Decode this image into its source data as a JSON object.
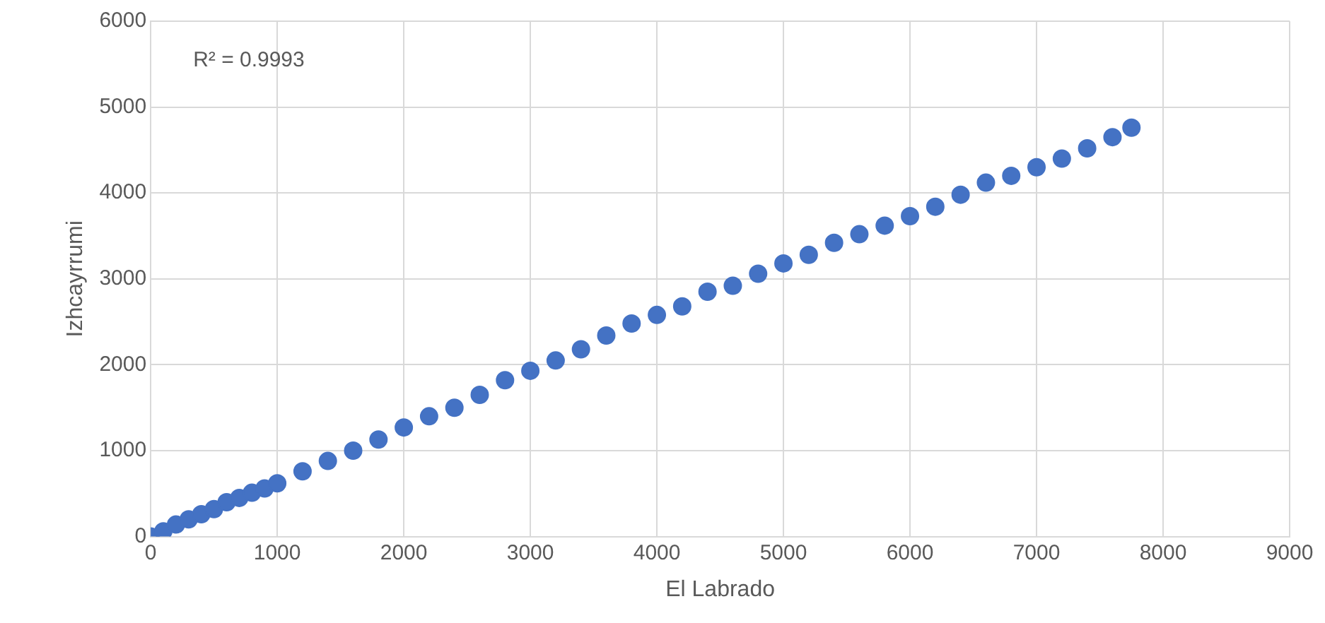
{
  "chart_data": {
    "type": "scatter",
    "xlabel": "El Labrado",
    "ylabel": "Izhcayrrumi",
    "annotations": [
      "R² = 0.9993"
    ],
    "series": [
      {
        "color": "#4472c4",
        "x": [
          0,
          100,
          200,
          300,
          400,
          500,
          600,
          700,
          800,
          900,
          1000,
          1200,
          1400,
          1600,
          1800,
          2000,
          2200,
          2400,
          2600,
          2800,
          3000,
          3200,
          3400,
          3600,
          3800,
          4000,
          4200,
          4400,
          4600,
          4800,
          5000,
          5200,
          5400,
          5600,
          5800,
          6000,
          6200,
          6400,
          6600,
          6800,
          7000,
          7200,
          7400,
          7600,
          7750
        ],
        "values": [
          0,
          60,
          140,
          200,
          260,
          320,
          400,
          450,
          510,
          560,
          620,
          760,
          880,
          1000,
          1130,
          1270,
          1400,
          1500,
          1650,
          1820,
          1930,
          2050,
          2180,
          2340,
          2480,
          2580,
          2680,
          2850,
          2920,
          3060,
          3180,
          3280,
          3420,
          3520,
          3620,
          3730,
          3840,
          3980,
          4120,
          4200,
          4300,
          4400,
          4520,
          4650,
          4760
        ]
      }
    ],
    "xlim": [
      0,
      9000
    ],
    "xticks": [
      0,
      1000,
      2000,
      3000,
      4000,
      5000,
      6000,
      7000,
      8000,
      9000
    ],
    "ylim": [
      0,
      6000
    ],
    "yticks": [
      0,
      1000,
      2000,
      3000,
      4000,
      5000,
      6000
    ],
    "grid": true,
    "legend": false,
    "marker": "circle"
  }
}
